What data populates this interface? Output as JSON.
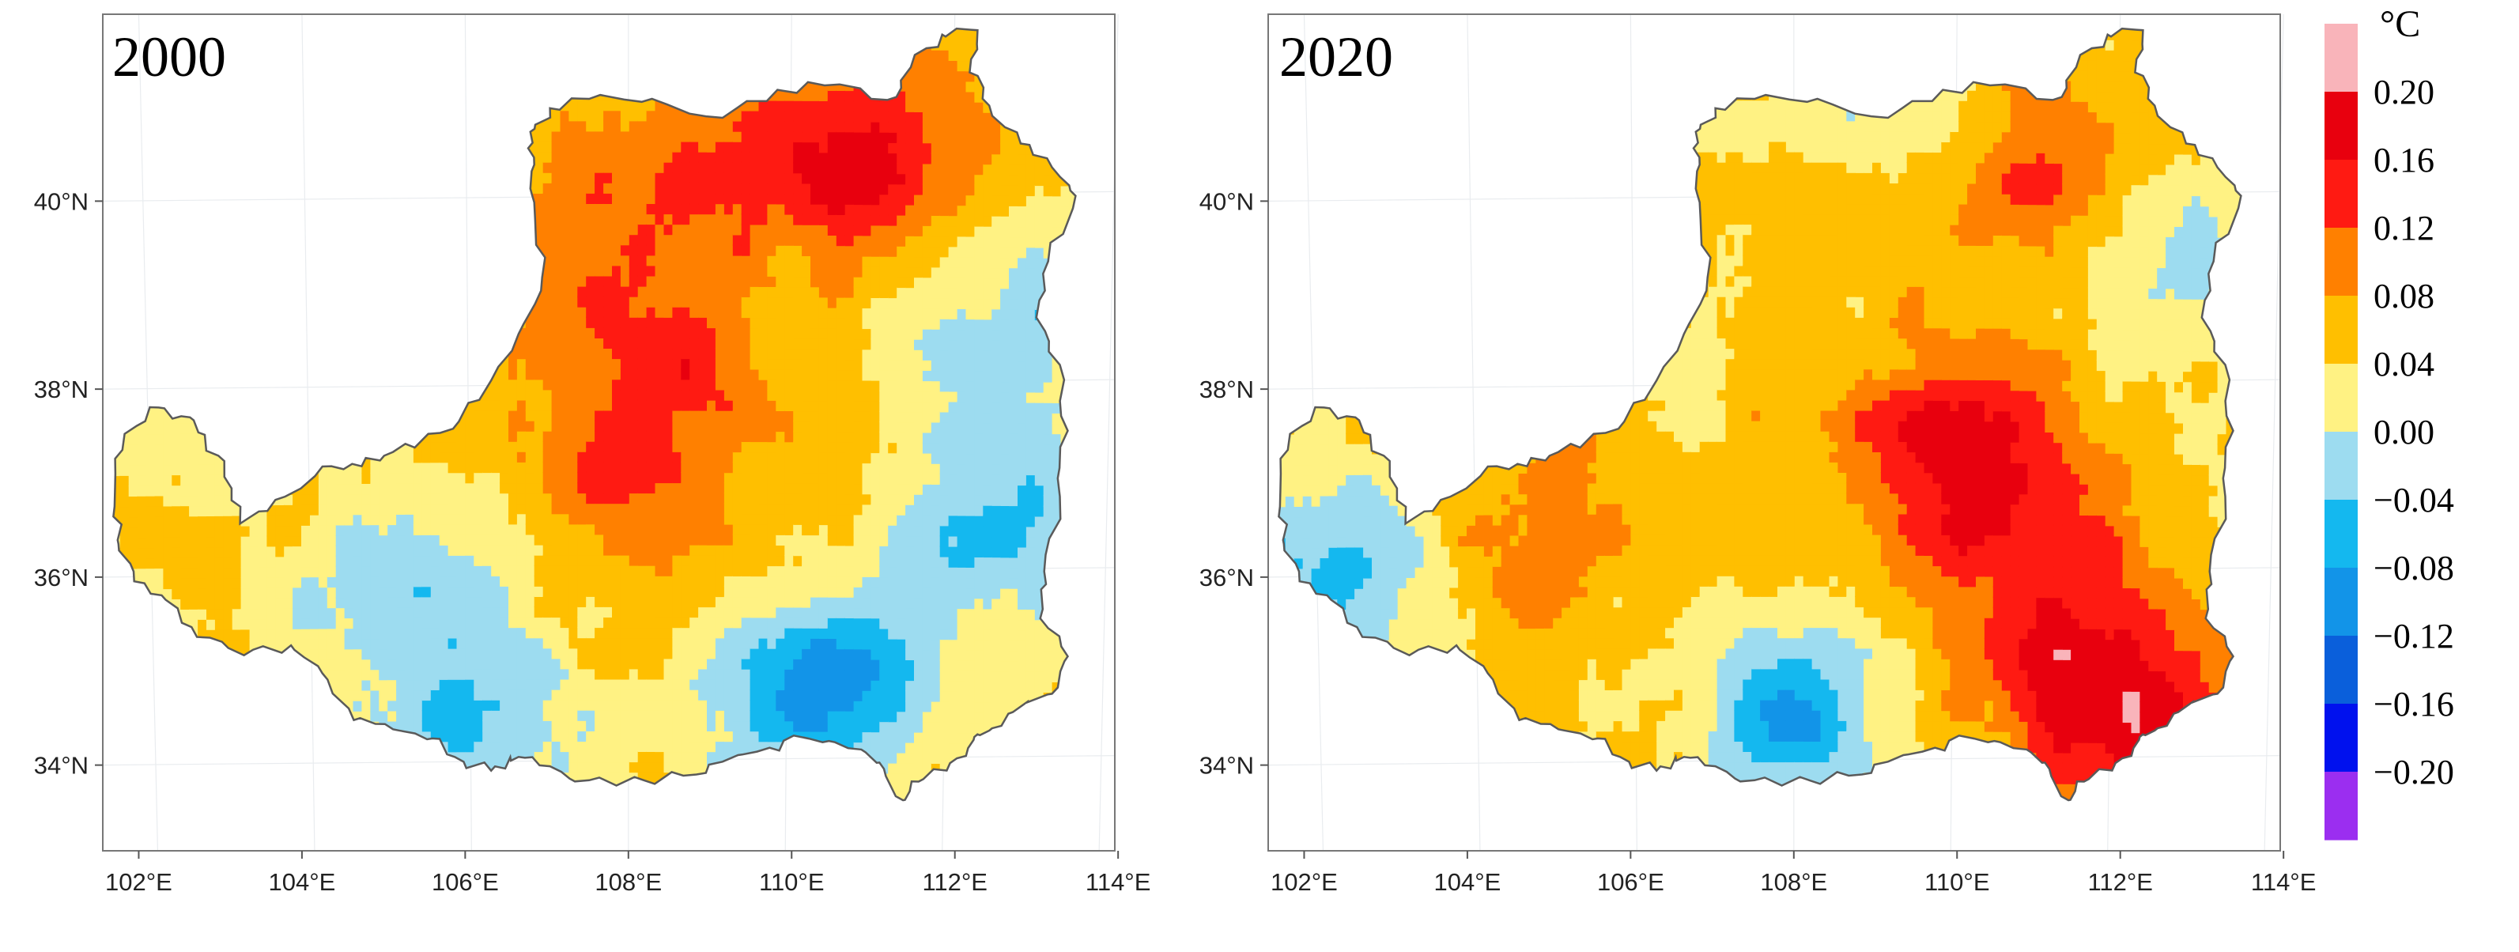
{
  "figure": {
    "description_unit": "°C"
  },
  "chart_data": [
    {
      "type": "heatmap",
      "title": "2000",
      "x_ticks": [
        "102°E",
        "104°E",
        "106°E",
        "108°E",
        "110°E",
        "112°E",
        "114°E"
      ],
      "y_ticks": [
        "34°N",
        "36°N",
        "38°N",
        "40°N"
      ],
      "xlim": [
        101.3,
        114.2
      ],
      "ylim": [
        33.0,
        41.9
      ],
      "pattern": {
        "base": 0.04,
        "hot_spots": [
          {
            "lon": 111.0,
            "lat": 40.3,
            "value": 0.16
          },
          {
            "lon": 108.5,
            "lat": 38.0,
            "value": 0.12
          },
          {
            "lon": 107.5,
            "lat": 39.5,
            "value": 0.1
          },
          {
            "lon": 109.0,
            "lat": 40.5,
            "value": 0.1
          },
          {
            "lon": 107.8,
            "lat": 36.8,
            "value": 0.1
          }
        ],
        "cold_spots": [
          {
            "lon": 110.5,
            "lat": 34.7,
            "value": -0.1
          },
          {
            "lon": 105.2,
            "lat": 35.8,
            "value": -0.04
          },
          {
            "lon": 112.8,
            "lat": 36.5,
            "value": -0.05
          },
          {
            "lon": 106.0,
            "lat": 34.3,
            "value": -0.04
          },
          {
            "lon": 113.0,
            "lat": 38.5,
            "value": -0.03
          }
        ]
      }
    },
    {
      "type": "heatmap",
      "title": "2020",
      "x_ticks": [
        "102°E",
        "104°E",
        "106°E",
        "108°E",
        "110°E",
        "112°E",
        "114°E"
      ],
      "y_ticks": [
        "34°N",
        "36°N",
        "38°N",
        "40°N"
      ],
      "xlim": [
        101.3,
        114.2
      ],
      "ylim": [
        33.0,
        41.9
      ],
      "pattern": {
        "base": 0.05,
        "hot_spots": [
          {
            "lon": 110.0,
            "lat": 37.2,
            "value": 0.17
          },
          {
            "lon": 112.2,
            "lat": 34.5,
            "value": 0.19
          },
          {
            "lon": 110.8,
            "lat": 40.3,
            "value": 0.13
          },
          {
            "lon": 104.5,
            "lat": 36.5,
            "value": 0.11
          },
          {
            "lon": 111.0,
            "lat": 35.8,
            "value": 0.12
          }
        ],
        "cold_spots": [
          {
            "lon": 102.2,
            "lat": 36.0,
            "value": -0.07
          },
          {
            "lon": 108.0,
            "lat": 34.3,
            "value": -0.07
          },
          {
            "lon": 112.8,
            "lat": 39.2,
            "value": -0.02
          },
          {
            "lon": 109.5,
            "lat": 40.8,
            "value": -0.01
          }
        ]
      }
    }
  ],
  "colorbar": {
    "unit": "°C",
    "labels": [
      "0.20",
      "0.16",
      "0.12",
      "0.08",
      "0.04",
      "0.00",
      "−0.04",
      "−0.08",
      "−0.12",
      "−0.16",
      "−0.20"
    ],
    "bins": [
      {
        "color": "#f9b4ba",
        "range": "> 0.20"
      },
      {
        "color": "#e8000e",
        "range": "0.16 – 0.20"
      },
      {
        "color": "#ff1a12",
        "range": "0.12 – 0.16"
      },
      {
        "color": "#ff8000",
        "range": "0.08 – 0.12"
      },
      {
        "color": "#ffbf00",
        "range": "0.04 – 0.08"
      },
      {
        "color": "#fff283",
        "range": "0.00 – 0.04"
      },
      {
        "color": "#9ddcf0",
        "range": "−0.04 – 0.00"
      },
      {
        "color": "#14b8ef",
        "range": "−0.08 – −0.04"
      },
      {
        "color": "#1294e8",
        "range": "−0.12 – −0.08"
      },
      {
        "color": "#0a5fdb",
        "range": "−0.16 – −0.12"
      },
      {
        "color": "#0011ee",
        "range": "−0.20 – −0.16"
      },
      {
        "color": "#9b2ef0",
        "range": "< −0.20"
      }
    ]
  }
}
